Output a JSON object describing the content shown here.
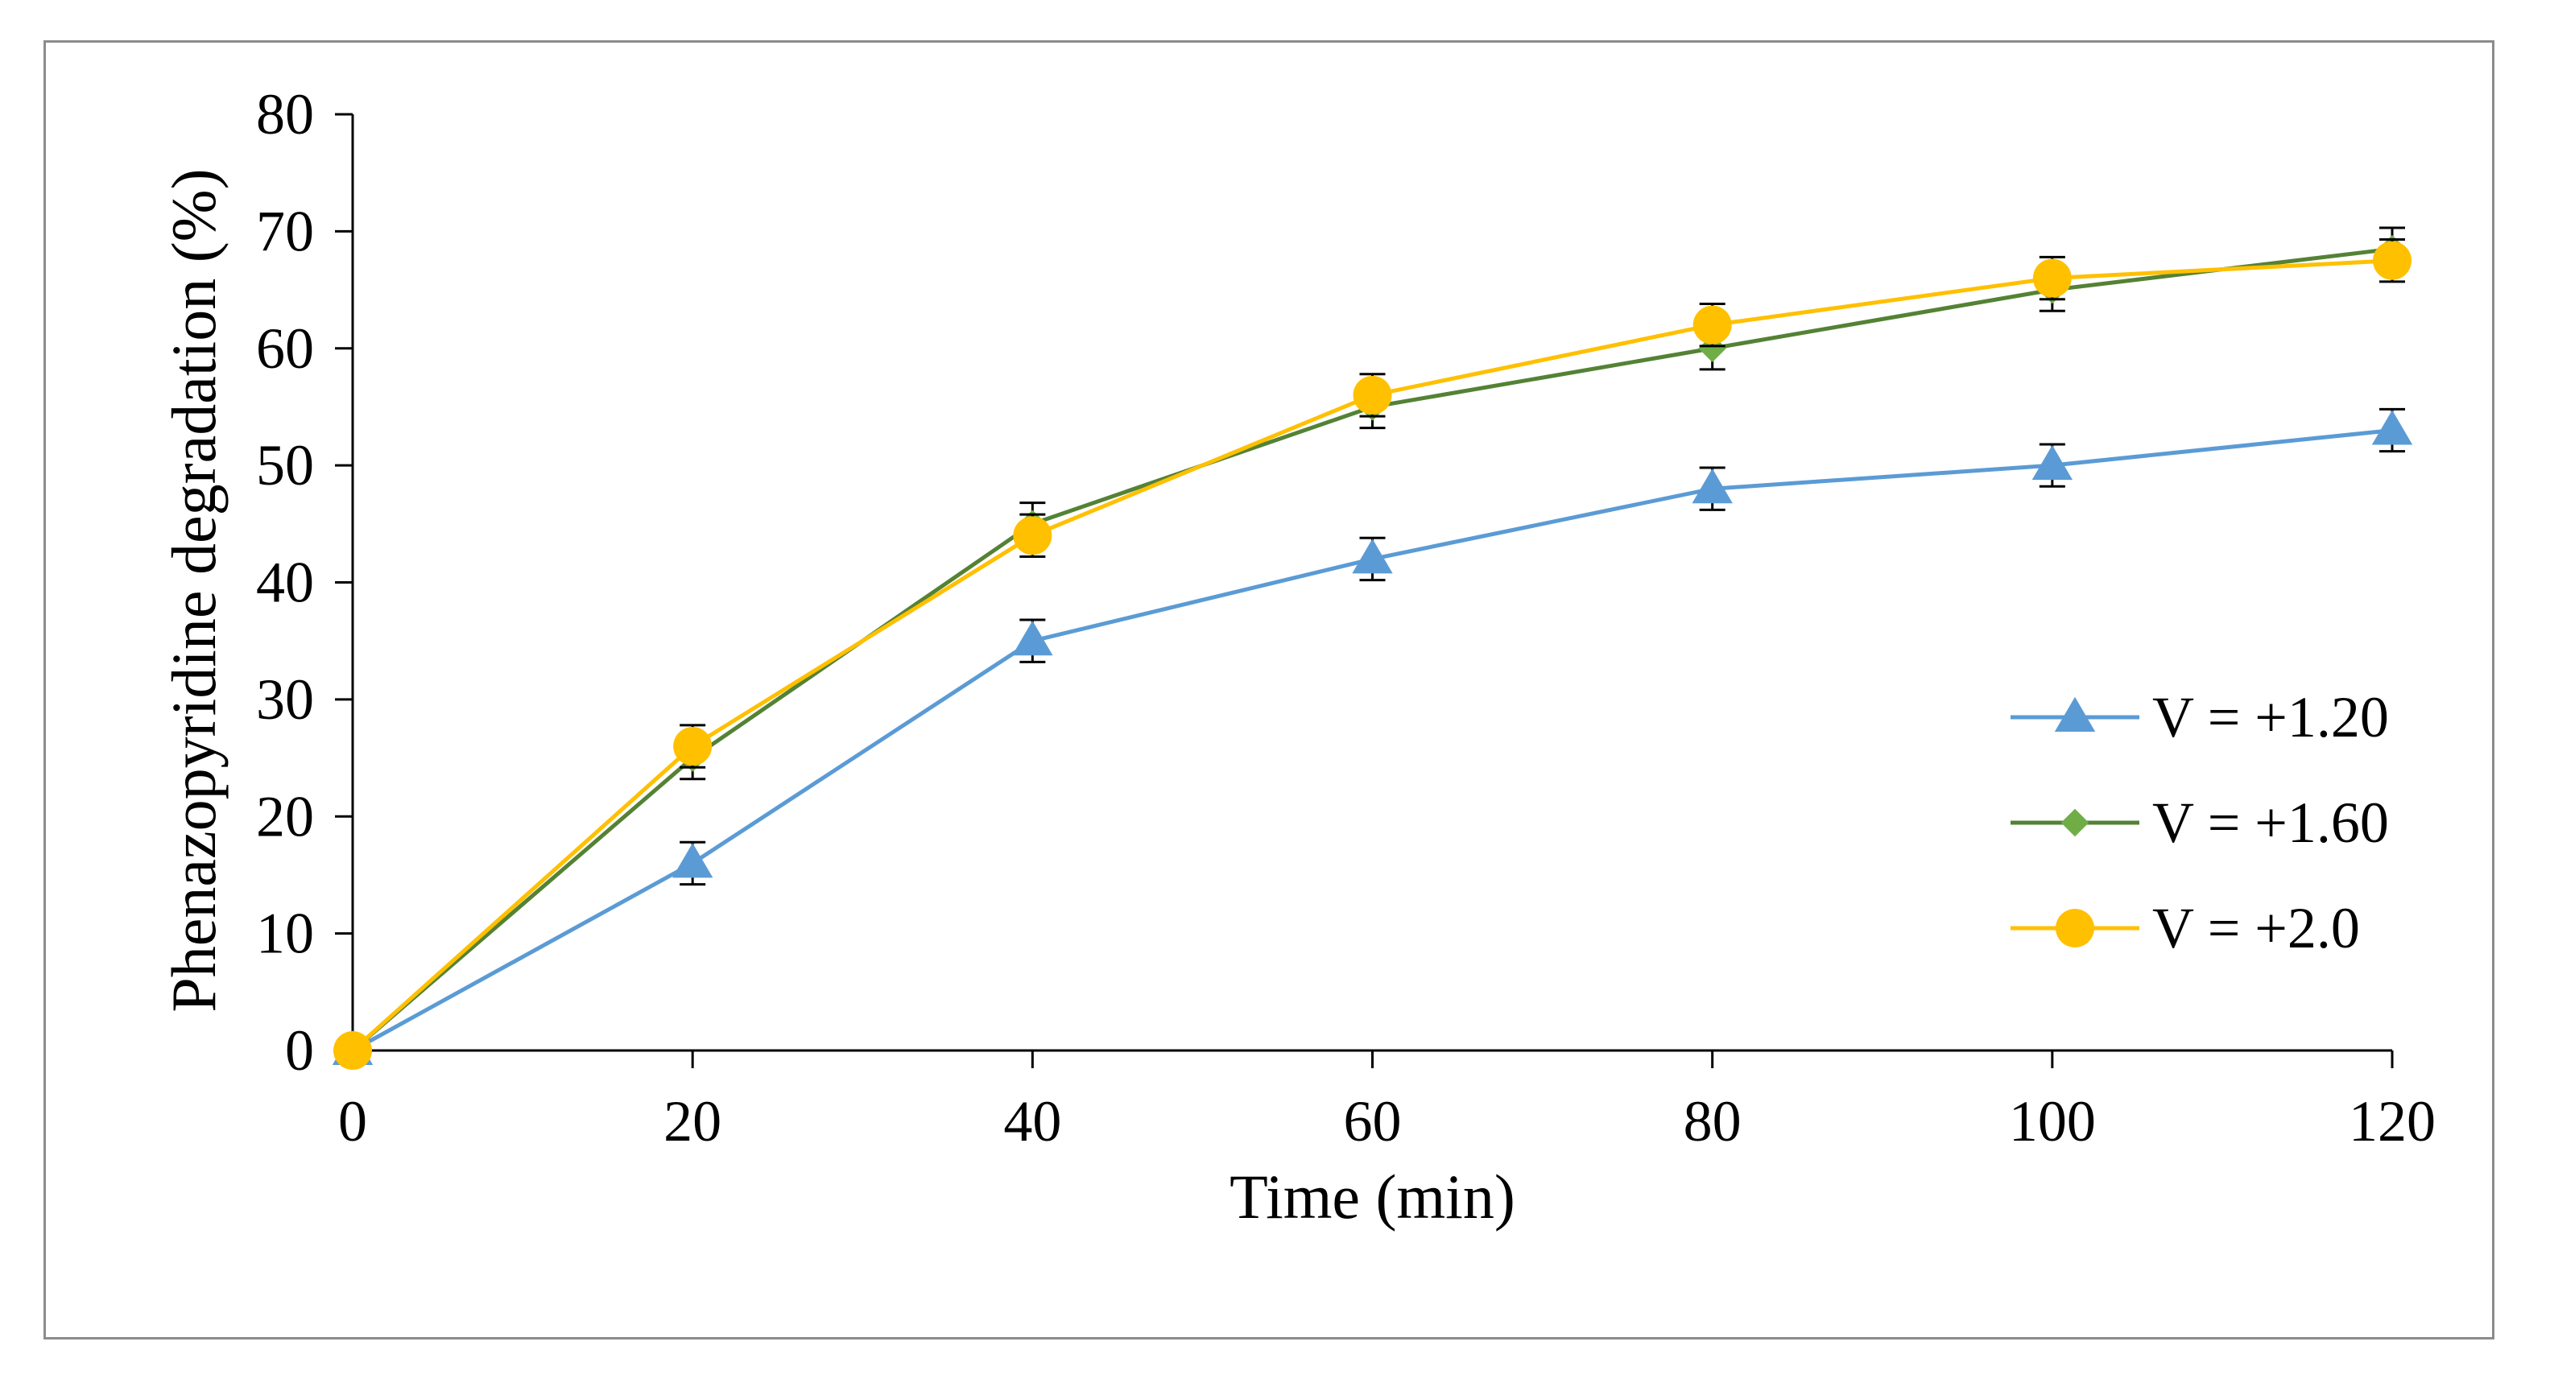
{
  "chart_data": {
    "type": "line",
    "title": "",
    "xlabel": "Time (min)",
    "ylabel": "Phenazopyridine degradation (%)",
    "x": [
      0,
      20,
      40,
      60,
      80,
      100,
      120
    ],
    "xlim": [
      0,
      120
    ],
    "ylim": [
      0,
      80
    ],
    "xticks": [
      0,
      20,
      40,
      60,
      80,
      100,
      120
    ],
    "yticks": [
      0,
      10,
      20,
      30,
      40,
      50,
      60,
      70,
      80
    ],
    "grid": false,
    "legend_position": "right",
    "series": [
      {
        "name": "V = +1.20",
        "color": "#5b9bd5",
        "marker": "triangle",
        "values": [
          0,
          16,
          35,
          42,
          48,
          50,
          53
        ],
        "errors": [
          0,
          1.8,
          1.8,
          1.8,
          1.8,
          1.8,
          1.8
        ]
      },
      {
        "name": "V = +1.60",
        "color": "#548235",
        "marker_color": "#70ad47",
        "marker": "diamond",
        "values": [
          0,
          25,
          45,
          55,
          60,
          65,
          68.5
        ],
        "errors": [
          0,
          1.8,
          1.8,
          1.8,
          1.8,
          1.8,
          1.8
        ]
      },
      {
        "name": "V = +2.0",
        "color": "#ffc000",
        "marker": "circle",
        "values": [
          0,
          26,
          44,
          56,
          62,
          66,
          67.5
        ],
        "errors": [
          0,
          1.8,
          1.8,
          1.8,
          1.8,
          1.8,
          1.8
        ]
      }
    ]
  }
}
